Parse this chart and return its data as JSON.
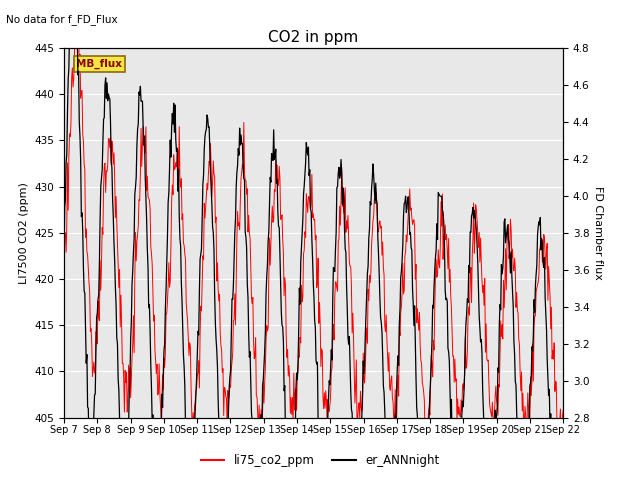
{
  "title": "CO2 in ppm",
  "ylabel_left": "LI7500 CO2 (ppm)",
  "ylabel_right": "FD Chamber flux",
  "ylim_left": [
    405,
    445
  ],
  "ylim_right": [
    2.8,
    4.8
  ],
  "yticks_left": [
    405,
    410,
    415,
    420,
    425,
    430,
    435,
    440,
    445
  ],
  "yticks_right": [
    2.8,
    3.0,
    3.2,
    3.4,
    3.6,
    3.8,
    4.0,
    4.2,
    4.4,
    4.6,
    4.8
  ],
  "xlabel_ticks": [
    "Sep 7",
    "Sep 8",
    "Sep 9",
    "Sep 10",
    "Sep 11",
    "Sep 12",
    "Sep 13",
    "Sep 14",
    "Sep 15",
    "Sep 16",
    "Sep 17",
    "Sep 18",
    "Sep 19",
    "Sep 20",
    "Sep 21",
    "Sep 22"
  ],
  "no_data_text": "No data for f_FD_Flux",
  "mb_flux_label": "MB_flux",
  "legend_labels": [
    "li75_co2_ppm",
    "er_ANNnight"
  ],
  "line1_color": "red",
  "line2_color": "black",
  "bg_color": "#e8e8e8",
  "title_fontsize": 11,
  "axis_fontsize": 8,
  "tick_fontsize": 7.5
}
